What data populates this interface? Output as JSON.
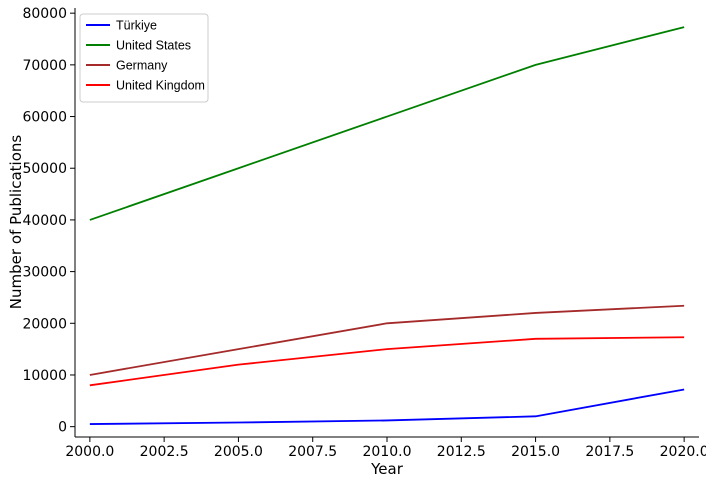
{
  "chart_data": {
    "type": "line",
    "title": "",
    "xlabel": "Year",
    "ylabel": "Number of Publications",
    "xlim": [
      1999.5,
      2020.5
    ],
    "ylim": [
      -2000,
      81000
    ],
    "xticks": [
      2000.0,
      2002.5,
      2005.0,
      2007.5,
      2010.0,
      2012.5,
      2015.0,
      2017.5,
      2020.0
    ],
    "xtick_labels": [
      "2000.0",
      "2002.5",
      "2005.0",
      "2007.5",
      "2010.0",
      "2012.5",
      "2015.0",
      "2017.5",
      "2020.0"
    ],
    "yticks": [
      0,
      10000,
      20000,
      30000,
      40000,
      50000,
      60000,
      70000,
      80000
    ],
    "ytick_labels": [
      "0",
      "10000",
      "20000",
      "30000",
      "40000",
      "50000",
      "60000",
      "70000",
      "80000"
    ],
    "x": [
      2000,
      2005,
      2010,
      2015,
      2020
    ],
    "series": [
      {
        "name": "Türkiye",
        "color": "#0000ff",
        "values": [
          500,
          800,
          1200,
          2000,
          7200
        ]
      },
      {
        "name": "United States",
        "color": "#008000",
        "values": [
          40000,
          50000,
          60000,
          70000,
          77300
        ]
      },
      {
        "name": "Germany",
        "color": "#a52a2a",
        "values": [
          10000,
          15000,
          20000,
          22000,
          23400
        ]
      },
      {
        "name": "United Kingdom",
        "color": "#ff0000",
        "values": [
          8000,
          12000,
          15000,
          17000,
          17300
        ]
      }
    ],
    "grid": false,
    "legend_position": "top-left"
  }
}
